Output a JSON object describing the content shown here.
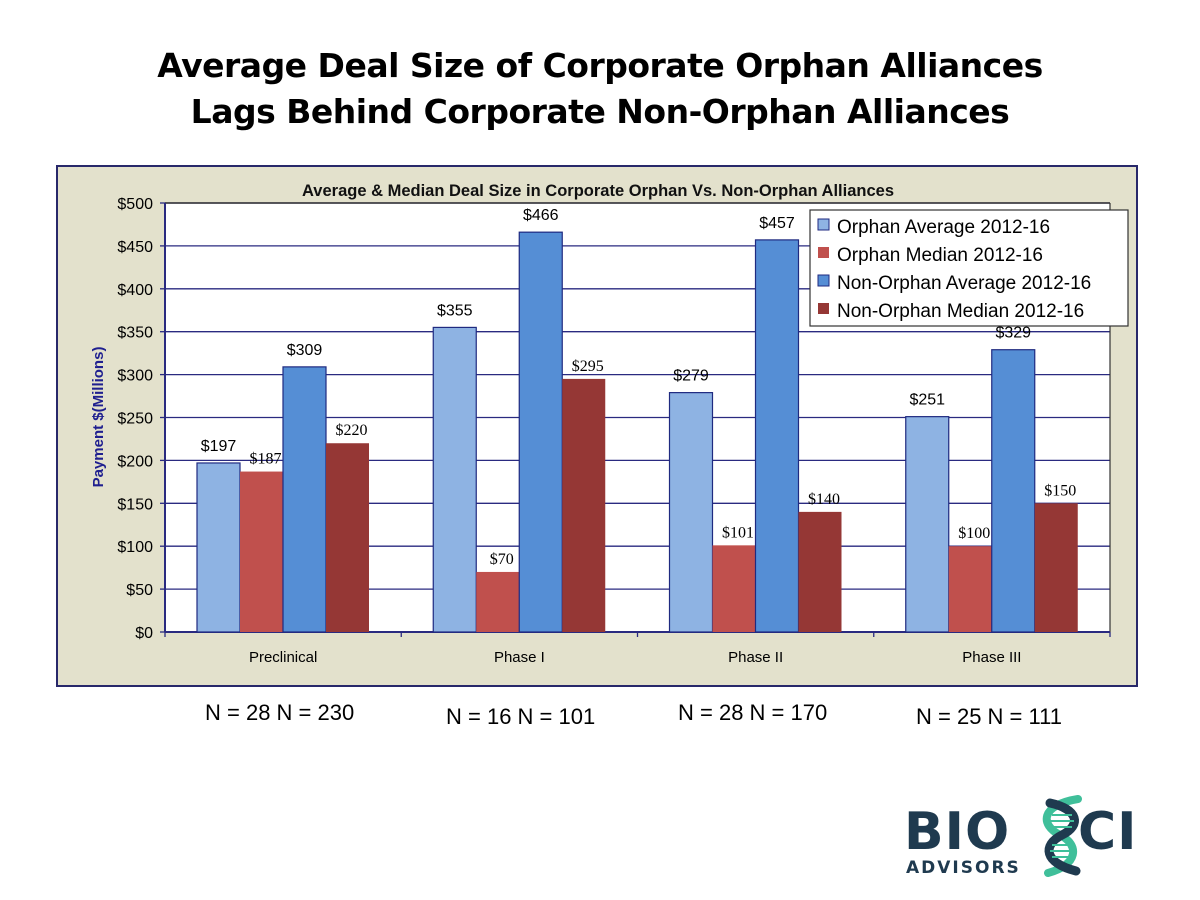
{
  "page": {
    "title_line1": "Average Deal Size of Corporate Orphan Alliances",
    "title_line2": "Lags Behind Corporate Non-Orphan Alliances"
  },
  "sample_sizes": [
    {
      "category": "Preclinical",
      "label": "N = 28  N = 230"
    },
    {
      "category": "Phase I",
      "label": "N = 16  N = 101"
    },
    {
      "category": "Phase II",
      "label": "N = 28  N = 170"
    },
    {
      "category": "Phase III",
      "label": "N = 25  N = 111"
    }
  ],
  "logo": {
    "text_main": "BIOSCI",
    "text_sub": "ADVISORS",
    "colors": {
      "navy": "#1f3a4f",
      "teal": "#3fbf9a"
    }
  },
  "chart_data": {
    "type": "bar",
    "title": "Average  & Median Deal Size in Corporate Orphan Vs. Non-Orphan Alliances",
    "xlabel": "",
    "ylabel": "Payment  $(Millions)",
    "ylim": [
      0,
      500
    ],
    "yticks": [
      0,
      50,
      100,
      150,
      200,
      250,
      300,
      350,
      400,
      450,
      500
    ],
    "ytick_labels": [
      "$0",
      "$50",
      "$100",
      "$150",
      "$200",
      "$250",
      "$300",
      "$350",
      "$400",
      "$450",
      "$500"
    ],
    "grid": true,
    "legend_position": "top-right",
    "categories": [
      "Preclinical",
      "Phase I",
      "Phase II",
      "Phase III"
    ],
    "series": [
      {
        "name": "Orphan Average 2012-16",
        "color": "#8eb3e3",
        "values": [
          197,
          355,
          279,
          251
        ],
        "labels": [
          "$197",
          "$355",
          "$279",
          "$251"
        ],
        "label_style": "sans"
      },
      {
        "name": "Orphan Median 2012-16",
        "color": "#c0504d",
        "values": [
          187,
          70,
          101,
          100
        ],
        "labels": [
          "$187",
          "$70",
          "$101",
          "$100"
        ],
        "label_style": "serif"
      },
      {
        "name": "Non-Orphan Average 2012-16",
        "color": "#558ed5",
        "values": [
          309,
          466,
          457,
          329
        ],
        "labels": [
          "$309",
          "$466",
          "$457",
          "$329"
        ],
        "label_style": "sans"
      },
      {
        "name": "Non-Orphan Median 2012-16",
        "color": "#953735",
        "values": [
          220,
          295,
          140,
          150
        ],
        "labels": [
          "$220",
          "$295",
          "$140",
          "$150"
        ],
        "label_style": "serif"
      }
    ]
  }
}
